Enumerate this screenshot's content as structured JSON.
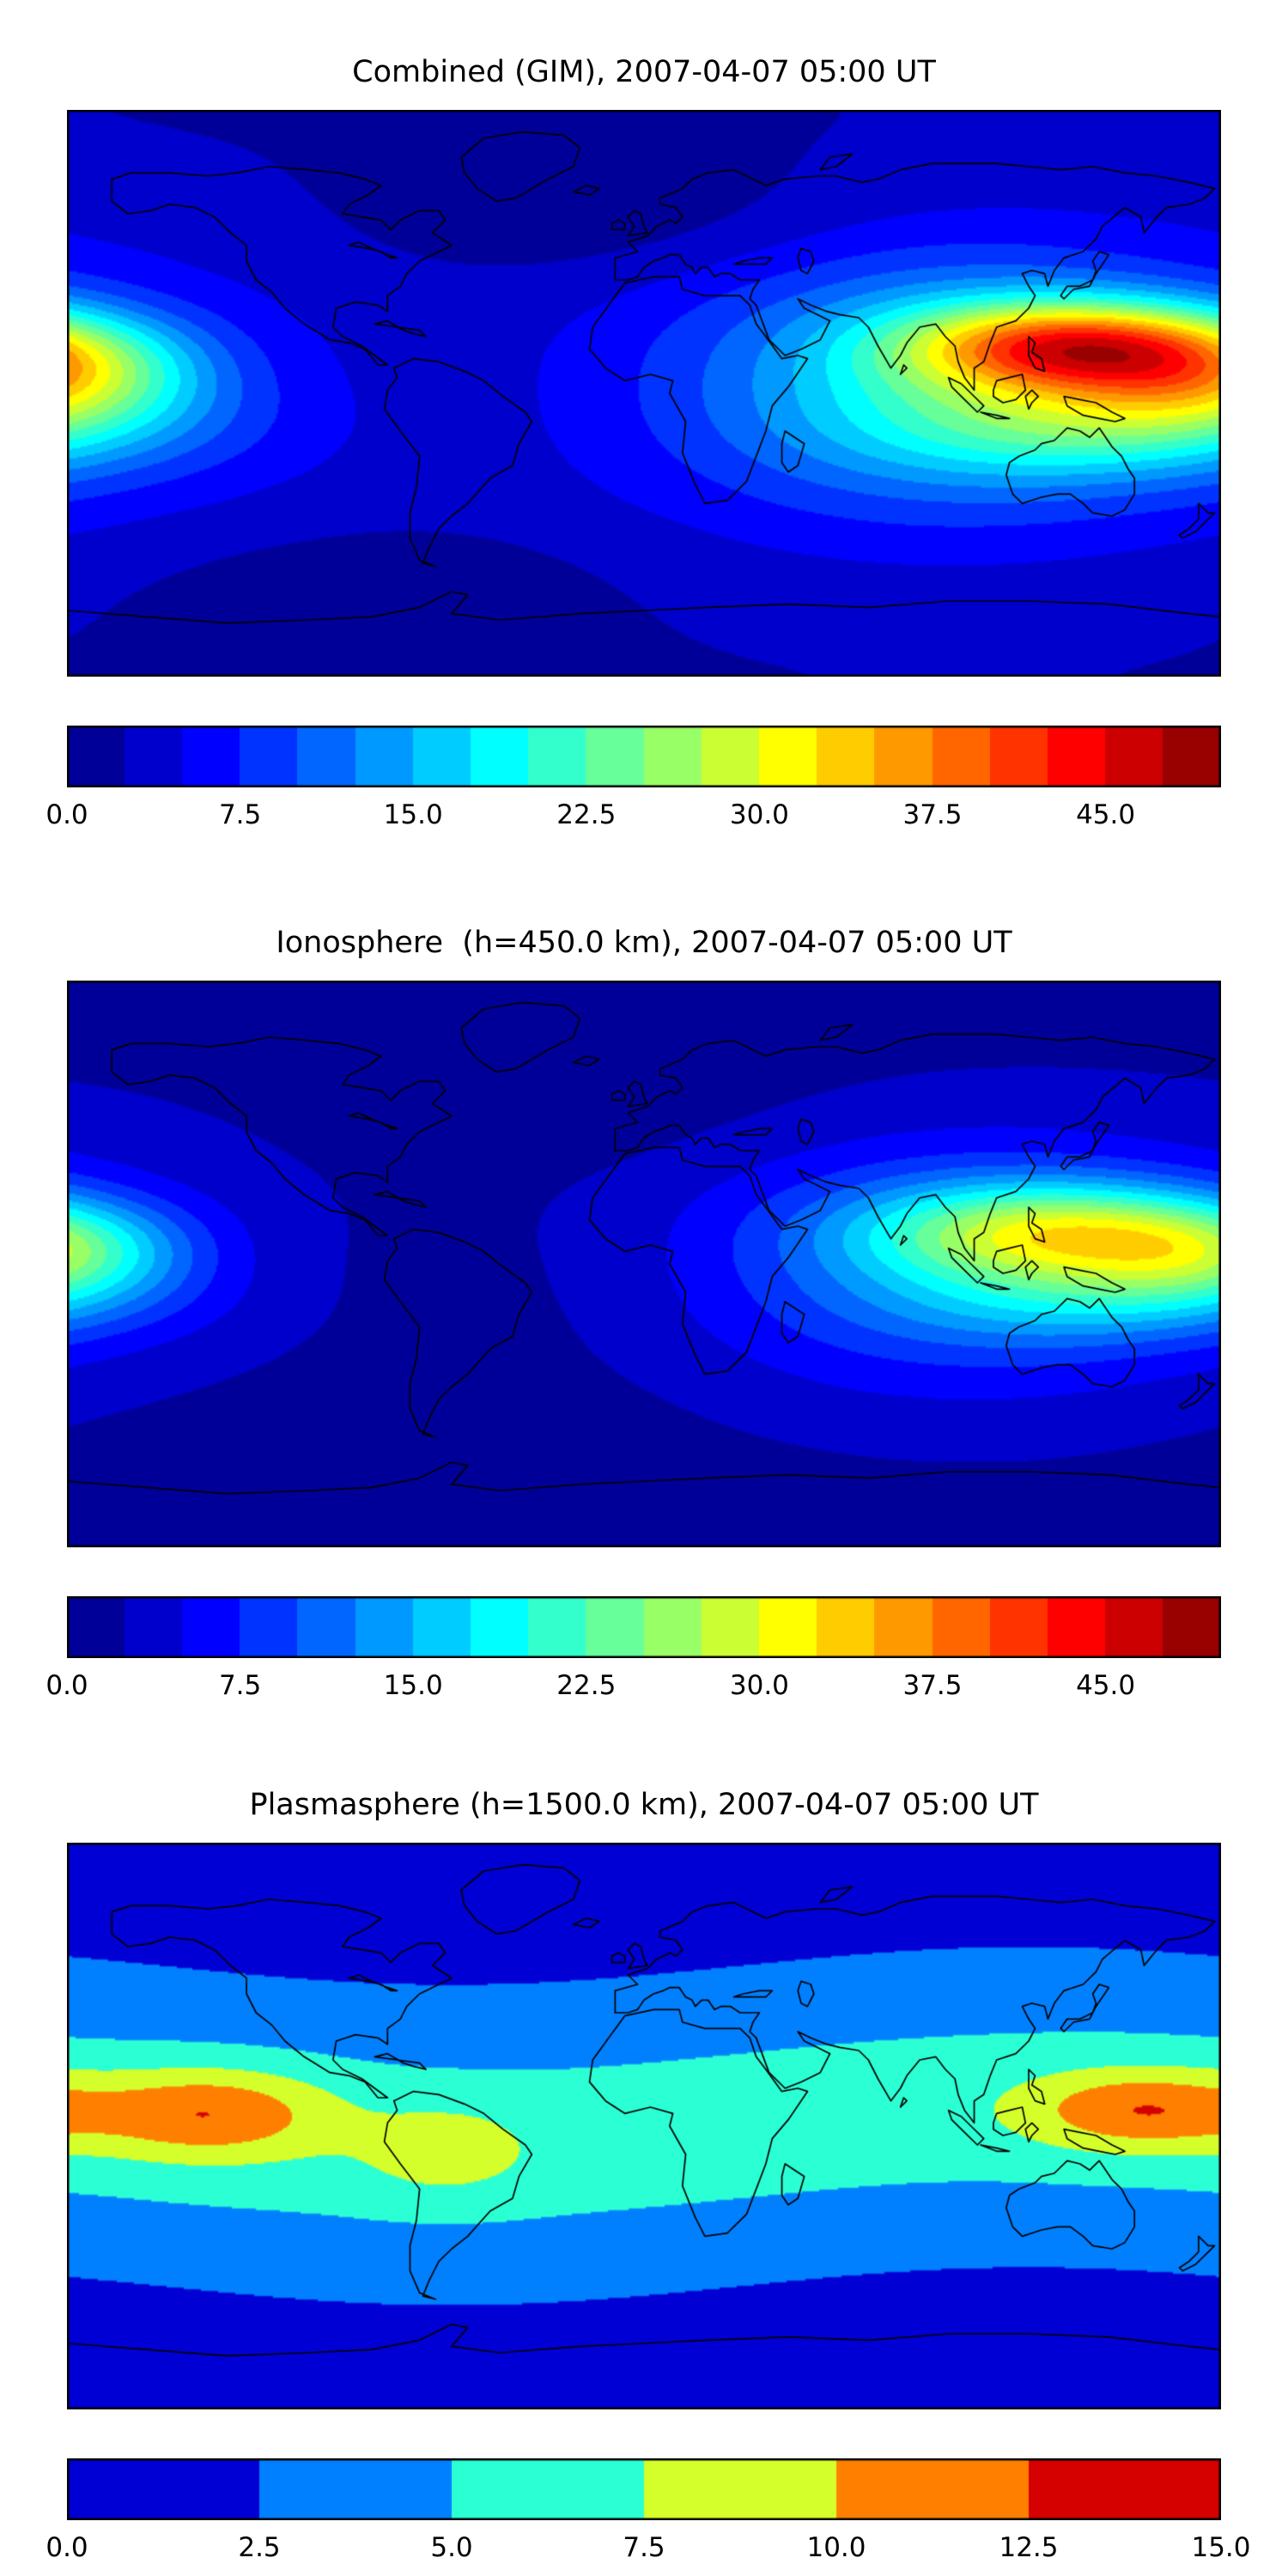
{
  "style": {
    "background": "#ffffff",
    "coastline_color": "#000000",
    "frame_color": "#000000",
    "text_color": "#000000",
    "colormap": "jet"
  },
  "panels": [
    {
      "title": "Combined (GIM), 2007-04-07 05:00 UT"
    },
    {
      "title": "Ionosphere  (h=450.0 km), 2007-04-07 05:00 UT"
    },
    {
      "title": "Plasmasphere (h=1500.0 km), 2007-04-07 05:00 UT"
    }
  ],
  "chart_data": [
    {
      "type": "heatmap",
      "title": "Combined (GIM), 2007-04-07 05:00 UT",
      "projection": "equirectangular",
      "lon_range": [
        -180,
        180
      ],
      "lat_range": [
        -90,
        90
      ],
      "colormap": "jet",
      "vmin": 0,
      "vmax": 50,
      "levels": 20,
      "colorbar_ticks": [
        0,
        7.5,
        15,
        22.5,
        30,
        37.5,
        45
      ],
      "colorbar_tick_labels": [
        "0.0",
        "7.5",
        "15.0",
        "22.5",
        "30.0",
        "37.5",
        "45.0"
      ],
      "peak": {
        "value": 47,
        "lon": 133,
        "lat": 15
      },
      "field_model": {
        "base": [
          2.5,
          4.5
        ],
        "gaussians": [
          [
            95,
            5,
            55,
            28,
            10
          ],
          [
            133,
            15,
            36,
            10,
            28
          ],
          [
            178,
            6,
            30,
            12,
            16
          ],
          [
            145,
            -10,
            50,
            12,
            11
          ],
          [
            -10,
            55,
            55,
            15,
            -2.5
          ],
          [
            -90,
            -58,
            60,
            14,
            -1.8
          ],
          [
            -60,
            0,
            55,
            35,
            -3
          ]
        ]
      }
    },
    {
      "type": "heatmap",
      "title": "Ionosphere  (h=450.0 km), 2007-04-07 05:00 UT",
      "projection": "equirectangular",
      "lon_range": [
        -180,
        180
      ],
      "lat_range": [
        -90,
        90
      ],
      "colormap": "jet",
      "vmin": 0,
      "vmax": 50,
      "levels": 20,
      "colorbar_ticks": [
        0,
        7.5,
        15,
        22.5,
        30,
        37.5,
        45
      ],
      "colorbar_tick_labels": [
        "0.0",
        "7.5",
        "15.0",
        "22.5",
        "30.0",
        "37.5",
        "45.0"
      ],
      "peak": {
        "value": 32,
        "lon": 128,
        "lat": 10
      },
      "field_model": {
        "base": [
          1.5,
          3.5
        ],
        "gaussians": [
          [
            95,
            0,
            55,
            26,
            7
          ],
          [
            128,
            10,
            40,
            11,
            20
          ],
          [
            177,
            3,
            28,
            11,
            13
          ],
          [
            145,
            -12,
            45,
            10,
            7
          ],
          [
            -15,
            50,
            60,
            16,
            -1.2
          ],
          [
            -55,
            -5,
            70,
            35,
            -3.2
          ],
          [
            -95,
            -60,
            60,
            14,
            -1.2
          ]
        ]
      }
    },
    {
      "type": "heatmap",
      "title": "Plasmasphere (h=1500.0 km), 2007-04-07 05:00 UT",
      "projection": "equirectangular",
      "lon_range": [
        -180,
        180
      ],
      "lat_range": [
        -90,
        90
      ],
      "colormap": "jet",
      "vmin": 0,
      "vmax": 15,
      "levels": 6,
      "colorbar_ticks": [
        0,
        2.5,
        5,
        7.5,
        10,
        12.5,
        15
      ],
      "colorbar_tick_labels": [
        "0.0",
        "2.5",
        "5.0",
        "7.5",
        "10.0",
        "12.5",
        "15.0"
      ],
      "peak": {
        "value": 12.4,
        "lon": -135,
        "lat": 4
      },
      "field_model": {
        "base": [
          1.2,
          0
        ],
        "band": {
          "amp": 5,
          "sigma": 31,
          "wave_amp": 6,
          "wave_phase": 30
        },
        "gaussians": [
          [
            -62,
            -8,
            18,
            10,
            3
          ],
          [
            -135,
            4,
            26,
            10,
            6.2
          ],
          [
            155,
            5,
            26,
            9,
            6.2
          ]
        ]
      }
    }
  ]
}
